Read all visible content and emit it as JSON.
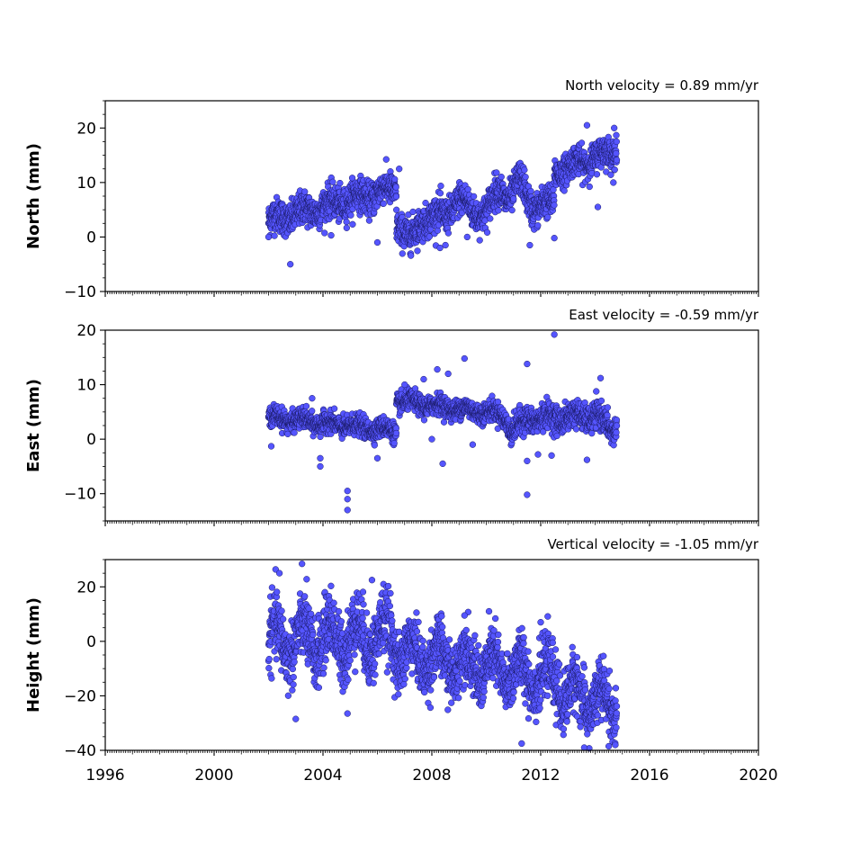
{
  "chart_data": [
    {
      "type": "scatter",
      "title": "North velocity = 0.89 mm/yr",
      "xlabel": "",
      "ylabel": "North (mm)",
      "xlim": [
        1996,
        2020
      ],
      "ylim": [
        -10,
        25
      ],
      "yticks": [
        -10,
        0,
        10,
        20
      ],
      "point_color": "#5555ff",
      "edge_color": "#1a1a66",
      "segments": [
        {
          "x_start": 2002.0,
          "x_end": 2006.7,
          "y_start": 3.0,
          "y_end": 9.0,
          "scatter": 2.0
        },
        {
          "x_start": 2006.7,
          "x_end": 2012.5,
          "y_start": 3.0,
          "y_end": 6.0,
          "scatter": 2.0
        },
        {
          "x_start": 2012.5,
          "x_end": 2014.8,
          "y_start": 12.0,
          "y_end": 16.0,
          "scatter": 1.8
        }
      ],
      "features": [
        {
          "x": 2007.2,
          "y_offset": -4.0
        },
        {
          "x": 2009.0,
          "y_offset": 3.0
        },
        {
          "x": 2010.5,
          "y_offset": 4.0
        },
        {
          "x": 2011.2,
          "y_offset": 5.0
        }
      ],
      "outliers": [
        {
          "x": 2002.8,
          "y": -5.0
        },
        {
          "x": 2002.0,
          "y": 0.0
        },
        {
          "x": 2004.3,
          "y": 0.3
        },
        {
          "x": 2006.0,
          "y": -1.0
        },
        {
          "x": 2008.3,
          "y": -2.0
        },
        {
          "x": 2008.5,
          "y": -1.5
        },
        {
          "x": 2009.3,
          "y": 0.0
        },
        {
          "x": 2011.6,
          "y": -1.5
        },
        {
          "x": 2012.5,
          "y": -0.2
        },
        {
          "x": 2013.7,
          "y": 20.5
        },
        {
          "x": 2014.1,
          "y": 5.5
        },
        {
          "x": 2014.7,
          "y": 20.0
        },
        {
          "x": 2011.4,
          "y": 12.3
        },
        {
          "x": 2006.8,
          "y": 12.5
        }
      ]
    },
    {
      "type": "scatter",
      "title": "East velocity = -0.59 mm/yr",
      "xlabel": "",
      "ylabel": "East (mm)",
      "xlim": [
        1996,
        2020
      ],
      "ylim": [
        -15,
        20
      ],
      "yticks": [
        -10,
        0,
        10,
        20
      ],
      "point_color": "#5555ff",
      "edge_color": "#1a1a66",
      "segments": [
        {
          "x_start": 2002.0,
          "x_end": 2006.7,
          "y_start": 4.0,
          "y_end": 1.5,
          "scatter": 1.2
        },
        {
          "x_start": 2006.7,
          "x_end": 2010.8,
          "y_start": 7.0,
          "y_end": 4.5,
          "scatter": 1.2
        },
        {
          "x_start": 2010.8,
          "x_end": 2014.8,
          "y_start": 3.5,
          "y_end": 4.5,
          "scatter": 1.6
        }
      ],
      "features": [
        {
          "x": 2014.6,
          "y_offset": -3.0
        },
        {
          "x": 2011.0,
          "y_offset": -2.0
        }
      ],
      "outliers": [
        {
          "x": 2002.1,
          "y": -1.3
        },
        {
          "x": 2003.9,
          "y": -3.5
        },
        {
          "x": 2003.9,
          "y": -5.0
        },
        {
          "x": 2004.9,
          "y": -9.5
        },
        {
          "x": 2004.9,
          "y": -11.0
        },
        {
          "x": 2004.9,
          "y": -13.0
        },
        {
          "x": 2006.0,
          "y": -3.5
        },
        {
          "x": 2003.6,
          "y": 7.5
        },
        {
          "x": 2007.0,
          "y": 10.0
        },
        {
          "x": 2007.7,
          "y": 11.0
        },
        {
          "x": 2008.2,
          "y": 12.8
        },
        {
          "x": 2008.6,
          "y": 12.0
        },
        {
          "x": 2009.2,
          "y": 14.8
        },
        {
          "x": 2008.0,
          "y": 0.0
        },
        {
          "x": 2008.4,
          "y": -4.5
        },
        {
          "x": 2009.5,
          "y": -1.0
        },
        {
          "x": 2011.5,
          "y": 13.8
        },
        {
          "x": 2011.5,
          "y": -4.0
        },
        {
          "x": 2011.5,
          "y": -10.2
        },
        {
          "x": 2011.9,
          "y": -2.8
        },
        {
          "x": 2012.4,
          "y": -3.0
        },
        {
          "x": 2012.5,
          "y": 19.2
        },
        {
          "x": 2013.7,
          "y": -3.8
        },
        {
          "x": 2014.2,
          "y": 11.2
        }
      ]
    },
    {
      "type": "scatter",
      "title": "Vertical velocity = -1.05 mm/yr",
      "xlabel": "",
      "ylabel": "Height (mm)",
      "xlim": [
        1996,
        2020
      ],
      "ylim": [
        -40,
        30
      ],
      "yticks": [
        -40,
        -20,
        0,
        20
      ],
      "point_color": "#5555ff",
      "edge_color": "#1a1a66",
      "segments": [
        {
          "x_start": 2002.0,
          "x_end": 2006.7,
          "y_start": 0.0,
          "y_end": 2.0,
          "scatter": 8.0
        },
        {
          "x_start": 2006.7,
          "x_end": 2012.7,
          "y_start": -4.0,
          "y_end": -14.0,
          "scatter": 7.0
        },
        {
          "x_start": 2012.7,
          "x_end": 2014.8,
          "y_start": -18.0,
          "y_end": -24.0,
          "scatter": 7.0
        }
      ],
      "features": [],
      "outliers": [
        {
          "x": 2002.4,
          "y": 25.0
        },
        {
          "x": 2003.4,
          "y": 22.8
        },
        {
          "x": 2003.0,
          "y": -28.5
        },
        {
          "x": 2004.9,
          "y": -26.5
        },
        {
          "x": 2005.8,
          "y": 22.5
        },
        {
          "x": 2009.2,
          "y": 9.5
        },
        {
          "x": 2011.3,
          "y": -37.5
        },
        {
          "x": 2013.6,
          "y": -39.0
        },
        {
          "x": 2014.5,
          "y": -38.5
        },
        {
          "x": 2012.0,
          "y": 7.0
        }
      ]
    }
  ]
}
